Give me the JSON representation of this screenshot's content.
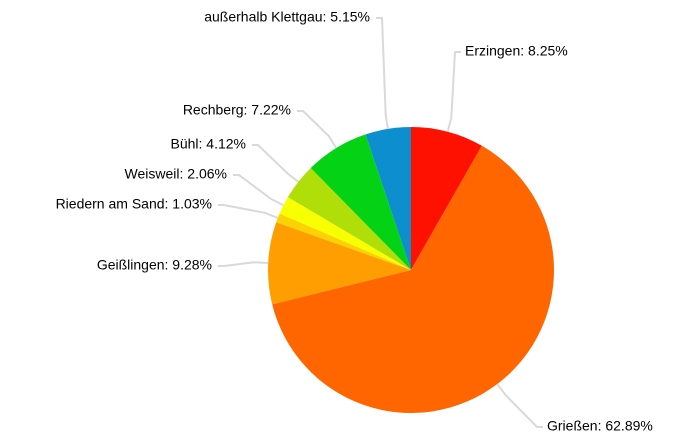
{
  "chart_data": {
    "type": "pie",
    "labels": [
      "Erzingen: 8.25%",
      "Grießen: 62.89%",
      "Geißlingen: 9.28%",
      "Riedern am Sand: 1.03%",
      "Weisweil: 2.06%",
      "Bühl: 4.12%",
      "Rechberg: 7.22%",
      "außerhalb Klettgau: 5.15%"
    ],
    "values": [
      8.25,
      62.89,
      9.28,
      1.03,
      2.06,
      4.12,
      7.22,
      5.15
    ],
    "colors": [
      "#ff1100",
      "#ff6600",
      "#ff9e01",
      "#fcd202",
      "#f8ff01",
      "#b0de09",
      "#04d215",
      "#0d8ecf"
    ]
  }
}
